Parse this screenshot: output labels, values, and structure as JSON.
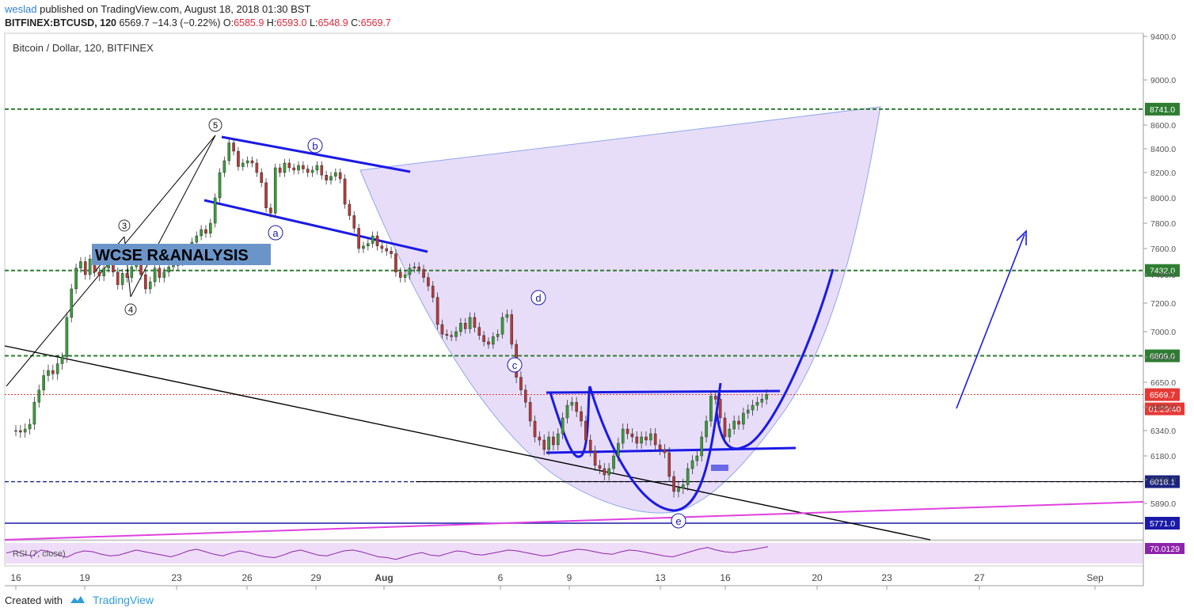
{
  "header": {
    "author": "weslad",
    "published_text": "published on TradingView.com, August 18, 2018 01:30 BST",
    "symbol": "BITFINEX:BTCUSD, 120",
    "last": "6569.7",
    "change": "−14.3 (−0.22%)",
    "open_label": "O:",
    "open": "6585.9",
    "high_label": "H:",
    "high": "6593.0",
    "low_label": "L:",
    "low": "6548.9",
    "close_label": "C:",
    "close": "6569.7"
  },
  "footer": {
    "created_with": "Created with",
    "brand": "TradingView"
  },
  "chart_data": {
    "type": "candlestick",
    "title": "Bitcoin / Dollar, 120, BITFINEX",
    "watermark": "WCSE R&ANALYSIS",
    "price_ticks": [
      9400,
      9000,
      8600,
      8400,
      8200,
      8000,
      7800,
      7600,
      7400,
      7200,
      7000,
      6800,
      6650,
      6490,
      6340,
      6180,
      6030,
      5890
    ],
    "price_tick_labels": [
      "9400.0",
      "9000.0",
      "8600.0",
      "8400.0",
      "8200.0",
      "8000.0",
      "7800.0",
      "7600.0",
      "7400.0",
      "7200.0",
      "7000.0",
      "6800.0",
      "6650.0",
      "6490.0",
      "6340.0",
      "6180.0",
      "6030.0",
      "5890.0"
    ],
    "x_ticks": [
      "16",
      "19",
      "23",
      "26",
      "29",
      "Aug",
      "6",
      "9",
      "13",
      "16",
      "20",
      "23",
      "27",
      "Sep"
    ],
    "x_tick_days": [
      -16,
      -13,
      -9,
      -6,
      -3,
      0,
      6,
      9,
      13,
      16,
      20,
      23,
      27,
      32
    ],
    "horizontal_levels": [
      {
        "label": "8741.0",
        "price": 8741.0,
        "color": "#2e7d32",
        "style": "dashed"
      },
      {
        "label": "7432.0",
        "price": 7432.0,
        "color": "#2e7d32",
        "style": "dashed"
      },
      {
        "label": "6809.0",
        "price": 6809.0,
        "color": "#2e7d32",
        "style": "dashed"
      },
      {
        "label": "6569.7",
        "price": 6569.7,
        "color": "#e53935",
        "style": "dotted",
        "kind": "last_price"
      },
      {
        "label": "01:29:40",
        "kind": "countdown"
      },
      {
        "label": "6018.1",
        "price": 6018.1,
        "color": "#1a237e",
        "style": "dashed"
      },
      {
        "label": "5771.0",
        "price": 5771.0,
        "color": "#1a1aa8",
        "style": "solid"
      }
    ],
    "wave_labels": [
      "5",
      "3",
      "4",
      "a",
      "b",
      "c",
      "d",
      "e"
    ],
    "candles": {
      "start_day": -16.2,
      "step_days": 0.0833,
      "close_path": [
        6340,
        6330,
        6350,
        6380,
        6520,
        6600,
        6690,
        6720,
        6700,
        6760,
        6800,
        7100,
        7300,
        7450,
        7500,
        7400,
        7520,
        7420,
        7390,
        7450,
        7550,
        7420,
        7330,
        7410,
        7380,
        7460,
        7500,
        7400,
        7300,
        7350,
        7450,
        7380,
        7420,
        7460,
        7470,
        7500,
        7520,
        7580,
        7650,
        7700,
        7750,
        7720,
        7800,
        8000,
        8200,
        8300,
        8450,
        8380,
        8250,
        8280,
        8300,
        8280,
        8200,
        8120,
        7920,
        7880,
        8240,
        8200,
        8280,
        8240,
        8220,
        8260,
        8230,
        8200,
        8220,
        8260,
        8180,
        8140,
        8170,
        8200,
        8150,
        7950,
        7860,
        7760,
        7600,
        7620,
        7640,
        7700,
        7620,
        7600,
        7580,
        7560,
        7420,
        7380,
        7400,
        7450,
        7460,
        7440,
        7380,
        7320,
        7240,
        7050,
        6980,
        6970,
        6960,
        7000,
        7060,
        7020,
        7100,
        7030,
        6970,
        6920,
        6900,
        6960,
        6980,
        7100,
        7120,
        6900,
        6680,
        6600,
        6520,
        6400,
        6300,
        6280,
        6220,
        6300,
        6250,
        6320,
        6420,
        6500,
        6520,
        6460,
        6400,
        6280,
        6210,
        6120,
        6100,
        6060,
        6100,
        6180,
        6260,
        6350,
        6320,
        6300,
        6260,
        6300,
        6280,
        6320,
        6250,
        6220,
        6200,
        6050,
        5960,
        5980,
        6000,
        6100,
        6150,
        6180,
        6300,
        6400,
        6560,
        6540,
        6420,
        6300,
        6350,
        6400,
        6380,
        6450,
        6470,
        6500,
        6520,
        6540,
        6569.7
      ]
    },
    "rsi": {
      "label": "RSI (7, close)",
      "value_label": "70.0129",
      "values": [
        55,
        60,
        52,
        48,
        62,
        58,
        50,
        45,
        55,
        60,
        58,
        52,
        48,
        50,
        56,
        62,
        58,
        54,
        50,
        46,
        52,
        60,
        64,
        58,
        52,
        48,
        55,
        60,
        56,
        50,
        46,
        44,
        50,
        58,
        62,
        56,
        50,
        48,
        54,
        60,
        62,
        58,
        52,
        46,
        44,
        40,
        46,
        52,
        56,
        50,
        48,
        54,
        60,
        58,
        52,
        50,
        54,
        58,
        62,
        60,
        56,
        52,
        48,
        50,
        56,
        60,
        64,
        62,
        58,
        54,
        52,
        58,
        62,
        60,
        56,
        52,
        48,
        46,
        52,
        58,
        64,
        68,
        62,
        58,
        56,
        60,
        62,
        66,
        70.0129
      ]
    }
  }
}
